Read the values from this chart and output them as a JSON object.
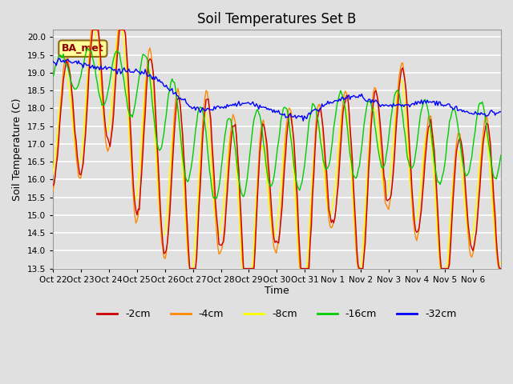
{
  "title": "Soil Temperatures Set B",
  "xlabel": "Time",
  "ylabel": "Soil Temperature (C)",
  "ylim": [
    13.5,
    20.2
  ],
  "yticks": [
    13.5,
    14.0,
    14.5,
    15.0,
    15.5,
    16.0,
    16.5,
    17.0,
    17.5,
    18.0,
    18.5,
    19.0,
    19.5,
    20.0
  ],
  "series_colors": {
    "-2cm": "#cc0000",
    "-4cm": "#ff8800",
    "-8cm": "#ffff00",
    "-16cm": "#00cc00",
    "-32cm": "#0000ff"
  },
  "legend_labels": [
    "-2cm",
    "-4cm",
    "-8cm",
    "-16cm",
    "-32cm"
  ],
  "annotation_text": "BA_met",
  "annotation_color": "#8b0000",
  "annotation_bg": "#ffff99",
  "plot_bg": "#e0e0e0",
  "grid_color": "#ffffff",
  "x_tick_labels": [
    "Oct 22",
    "Oct 23",
    "Oct 24",
    "Oct 25",
    "Oct 26",
    "Oct 27",
    "Oct 28",
    "Oct 29",
    "Oct 30",
    "Oct 31",
    "Nov 1",
    "Nov 2",
    "Nov 3",
    "Nov 4",
    "Nov 5",
    "Nov 6"
  ]
}
